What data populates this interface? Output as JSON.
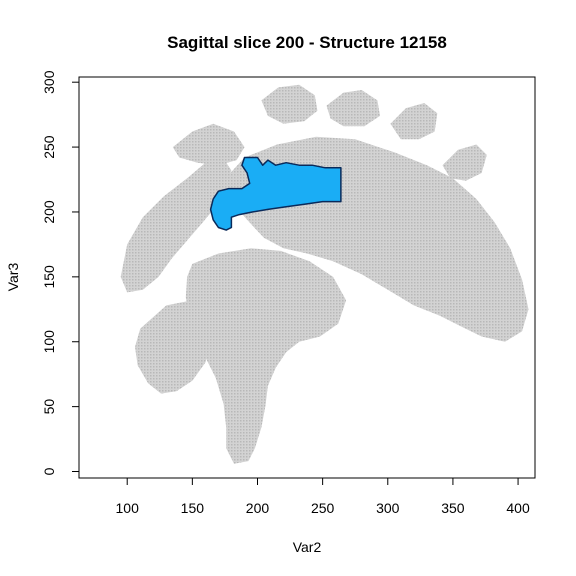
{
  "chart_data": {
    "type": "scatter",
    "title": "Sagittal slice 200 - Structure 12158",
    "xlabel": "Var2",
    "ylabel": "Var3",
    "xlim": [
      63,
      413
    ],
    "ylim": [
      -5,
      304
    ],
    "xticks": [
      100,
      150,
      200,
      250,
      300,
      350,
      400
    ],
    "yticks": [
      0,
      50,
      100,
      150,
      200,
      250,
      300
    ],
    "grid": false,
    "legend": "none",
    "colors": {
      "background_tissue": "#c8c8c8",
      "structure_fill": "#1aadf5",
      "structure_outline": "#0a2a5a"
    },
    "series": [
      {
        "role": "brain-slice",
        "regions": [
          {
            "name": "cerebrum",
            "points": [
              [
                170,
                220
              ],
              [
                190,
                242
              ],
              [
                215,
                252
              ],
              [
                245,
                258
              ],
              [
                275,
                256
              ],
              [
                305,
                246
              ],
              [
                330,
                236
              ],
              [
                350,
                226
              ],
              [
                368,
                210
              ],
              [
                382,
                192
              ],
              [
                394,
                172
              ],
              [
                403,
                148
              ],
              [
                408,
                125
              ],
              [
                403,
                108
              ],
              [
                390,
                100
              ],
              [
                372,
                104
              ],
              [
                356,
                112
              ],
              [
                340,
                120
              ],
              [
                320,
                128
              ],
              [
                300,
                140
              ],
              [
                280,
                152
              ],
              [
                258,
                162
              ],
              [
                238,
                168
              ],
              [
                220,
                172
              ],
              [
                205,
                180
              ],
              [
                192,
                194
              ],
              [
                180,
                208
              ]
            ]
          },
          {
            "name": "frontal-cortex",
            "points": [
              [
                95,
                150
              ],
              [
                100,
                175
              ],
              [
                112,
                196
              ],
              [
                128,
                212
              ],
              [
                146,
                226
              ],
              [
                160,
                238
              ],
              [
                172,
                244
              ],
              [
                180,
                232
              ],
              [
                175,
                218
              ],
              [
                168,
                204
              ],
              [
                158,
                192
              ],
              [
                146,
                178
              ],
              [
                134,
                164
              ],
              [
                124,
                150
              ],
              [
                112,
                140
              ],
              [
                100,
                138
              ]
            ]
          },
          {
            "name": "brainstem-midbrain",
            "points": [
              [
                150,
                160
              ],
              [
                170,
                168
              ],
              [
                195,
                172
              ],
              [
                218,
                170
              ],
              [
                240,
                162
              ],
              [
                258,
                150
              ],
              [
                268,
                132
              ],
              [
                262,
                114
              ],
              [
                248,
                104
              ],
              [
                232,
                100
              ],
              [
                222,
                92
              ],
              [
                214,
                80
              ],
              [
                208,
                66
              ],
              [
                206,
                50
              ],
              [
                203,
                34
              ],
              [
                198,
                18
              ],
              [
                193,
                8
              ],
              [
                182,
                6
              ],
              [
                176,
                18
              ],
              [
                176,
                34
              ],
              [
                174,
                52
              ],
              [
                168,
                72
              ],
              [
                158,
                92
              ],
              [
                150,
                112
              ],
              [
                145,
                134
              ],
              [
                146,
                150
              ]
            ]
          },
          {
            "name": "cerebellum",
            "points": [
              [
                110,
                110
              ],
              [
                130,
                128
              ],
              [
                150,
                132
              ],
              [
                162,
                118
              ],
              [
                164,
                100
              ],
              [
                160,
                84
              ],
              [
                150,
                70
              ],
              [
                138,
                62
              ],
              [
                126,
                60
              ],
              [
                116,
                68
              ],
              [
                108,
                82
              ],
              [
                106,
                96
              ]
            ]
          },
          {
            "name": "anterior-gyri",
            "points": [
              [
                135,
                250
              ],
              [
                150,
                262
              ],
              [
                166,
                268
              ],
              [
                182,
                262
              ],
              [
                190,
                250
              ],
              [
                184,
                240
              ],
              [
                170,
                236
              ],
              [
                154,
                238
              ],
              [
                140,
                242
              ]
            ]
          },
          {
            "name": "superior-gyrus-1",
            "points": [
              [
                203,
                286
              ],
              [
                216,
                296
              ],
              [
                232,
                298
              ],
              [
                244,
                290
              ],
              [
                246,
                278
              ],
              [
                236,
                270
              ],
              [
                220,
                268
              ],
              [
                208,
                274
              ]
            ]
          },
          {
            "name": "superior-gyrus-2",
            "points": [
              [
                253,
                282
              ],
              [
                266,
                292
              ],
              [
                280,
                294
              ],
              [
                292,
                286
              ],
              [
                294,
                274
              ],
              [
                282,
                266
              ],
              [
                266,
                266
              ],
              [
                256,
                272
              ]
            ]
          },
          {
            "name": "superior-gyrus-3",
            "points": [
              [
                302,
                268
              ],
              [
                314,
                280
              ],
              [
                328,
                284
              ],
              [
                338,
                276
              ],
              [
                336,
                262
              ],
              [
                324,
                256
              ],
              [
                310,
                256
              ]
            ]
          },
          {
            "name": "posterior-gyrus",
            "points": [
              [
                342,
                236
              ],
              [
                354,
                248
              ],
              [
                368,
                252
              ],
              [
                376,
                244
              ],
              [
                372,
                230
              ],
              [
                360,
                224
              ],
              [
                348,
                226
              ]
            ]
          }
        ]
      },
      {
        "role": "structure",
        "name": "12158",
        "points": [
          [
            190,
            242
          ],
          [
            200,
            242
          ],
          [
            204,
            236
          ],
          [
            208,
            240
          ],
          [
            214,
            236
          ],
          [
            222,
            238
          ],
          [
            232,
            236
          ],
          [
            242,
            236
          ],
          [
            252,
            234
          ],
          [
            264,
            234
          ],
          [
            264,
            208
          ],
          [
            250,
            208
          ],
          [
            236,
            206
          ],
          [
            222,
            204
          ],
          [
            208,
            202
          ],
          [
            196,
            200
          ],
          [
            186,
            198
          ],
          [
            180,
            196
          ],
          [
            180,
            188
          ],
          [
            176,
            186
          ],
          [
            170,
            188
          ],
          [
            166,
            194
          ],
          [
            164,
            202
          ],
          [
            166,
            210
          ],
          [
            170,
            216
          ],
          [
            178,
            218
          ],
          [
            188,
            218
          ],
          [
            194,
            222
          ],
          [
            192,
            230
          ],
          [
            188,
            236
          ]
        ]
      }
    ]
  }
}
